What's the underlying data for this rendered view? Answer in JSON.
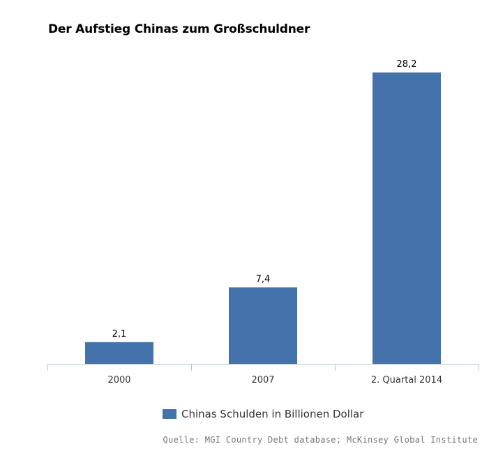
{
  "chart_data": {
    "type": "bar",
    "title": "Der Aufstieg Chinas zum Großschuldner",
    "categories": [
      "2000",
      "2007",
      "2. Quartal 2014"
    ],
    "series": [
      {
        "name": "Chinas Schulden in Billionen Dollar",
        "values": [
          2.1,
          7.4,
          28.2
        ],
        "labels": [
          "2,1",
          "7,4",
          "28,2"
        ]
      }
    ],
    "ylim": [
      0,
      28.2
    ],
    "grid": false,
    "legend_position": "bottom",
    "colors": {
      "bar": "#4472ab",
      "axis": "#b7c7d9"
    }
  },
  "source": "Quelle: MGI Country Debt database; McKinsey Global Institute"
}
